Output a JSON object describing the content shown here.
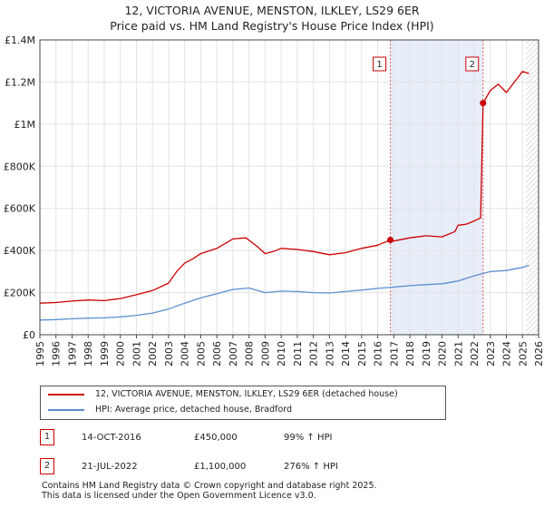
{
  "title_line1": "12, VICTORIA AVENUE, MENSTON, ILKLEY, LS29 6ER",
  "title_line2": "Price paid vs. HM Land Registry's House Price Index (HPI)",
  "chart_data": {
    "type": "line",
    "title": "12, VICTORIA AVENUE, MENSTON, ILKLEY, LS29 6ER — Price paid vs. HM Land Registry's House Price Index (HPI)",
    "xlabel": "",
    "ylabel": "",
    "xlim": [
      1995,
      2026
    ],
    "ylim": [
      0,
      1400000
    ],
    "y_ticks": [
      0,
      200000,
      400000,
      600000,
      800000,
      1000000,
      1200000,
      1400000
    ],
    "y_tick_labels": [
      "£0",
      "£200K",
      "£400K",
      "£600K",
      "£800K",
      "£1M",
      "£1.2M",
      "£1.4M"
    ],
    "x_ticks": [
      1995,
      1996,
      1997,
      1998,
      1999,
      2000,
      2001,
      2002,
      2003,
      2004,
      2005,
      2006,
      2007,
      2008,
      2009,
      2010,
      2011,
      2012,
      2013,
      2014,
      2015,
      2016,
      2017,
      2018,
      2019,
      2020,
      2021,
      2022,
      2023,
      2024,
      2025,
      2026
    ],
    "grid": true,
    "shaded_region": [
      2016.79,
      2022.55
    ],
    "future_hatch_from": 2025.2,
    "series": [
      {
        "name": "12, VICTORIA AVENUE, MENSTON, ILKLEY, LS29 6ER (detached house)",
        "color": "#cc0000",
        "x": [
          1995,
          1996,
          1997,
          1998,
          1999,
          2000,
          2001,
          2002,
          2003,
          2003.5,
          2004,
          2004.5,
          2005,
          2006,
          2007,
          2007.8,
          2008.5,
          2009,
          2009.5,
          2010,
          2011,
          2012,
          2013,
          2014,
          2015,
          2016,
          2016.79,
          2017,
          2018,
          2019,
          2020,
          2020.8,
          2021,
          2021.5,
          2022,
          2022.4,
          2022.55,
          2022.7,
          2023,
          2023.5,
          2024,
          2024.5,
          2025,
          2025.4
        ],
        "y": [
          150000,
          153000,
          160000,
          165000,
          162000,
          172000,
          190000,
          210000,
          245000,
          300000,
          340000,
          360000,
          385000,
          410000,
          455000,
          460000,
          420000,
          385000,
          395000,
          410000,
          405000,
          395000,
          380000,
          390000,
          410000,
          425000,
          450000,
          445000,
          460000,
          470000,
          465000,
          490000,
          520000,
          525000,
          540000,
          555000,
          1100000,
          1120000,
          1160000,
          1190000,
          1150000,
          1200000,
          1250000,
          1240000
        ]
      },
      {
        "name": "HPI: Average price, detached house, Bradford",
        "color": "#5b8fd0",
        "x": [
          1995,
          1996,
          1997,
          1998,
          1999,
          2000,
          2001,
          2002,
          2003,
          2004,
          2005,
          2006,
          2007,
          2008,
          2009,
          2010,
          2011,
          2012,
          2013,
          2014,
          2015,
          2016,
          2017,
          2018,
          2019,
          2020,
          2021,
          2022,
          2023,
          2024,
          2025,
          2025.4
        ],
        "y": [
          70000,
          72000,
          76000,
          79000,
          80000,
          85000,
          92000,
          103000,
          122000,
          150000,
          175000,
          195000,
          215000,
          222000,
          200000,
          207000,
          205000,
          200000,
          198000,
          205000,
          212000,
          220000,
          226000,
          233000,
          238000,
          242000,
          255000,
          280000,
          300000,
          305000,
          320000,
          330000
        ]
      }
    ],
    "annotations": [
      {
        "label": "1",
        "x": 2016.79,
        "y": 450000
      },
      {
        "label": "2",
        "x": 2022.55,
        "y": 1100000
      }
    ]
  },
  "legend": {
    "property_label": "12, VICTORIA AVENUE, MENSTON, ILKLEY, LS29 6ER (detached house)",
    "hpi_label": "HPI: Average price, detached house, Bradford"
  },
  "sales": [
    {
      "num": "1",
      "date": "14-OCT-2016",
      "price": "£450,000",
      "hpi": "99% ↑ HPI"
    },
    {
      "num": "2",
      "date": "21-JUL-2022",
      "price": "£1,100,000",
      "hpi": "276% ↑ HPI"
    }
  ],
  "footer_line1": "Contains HM Land Registry data © Crown copyright and database right 2025.",
  "footer_line2": "This data is licensed under the Open Government Licence v3.0."
}
